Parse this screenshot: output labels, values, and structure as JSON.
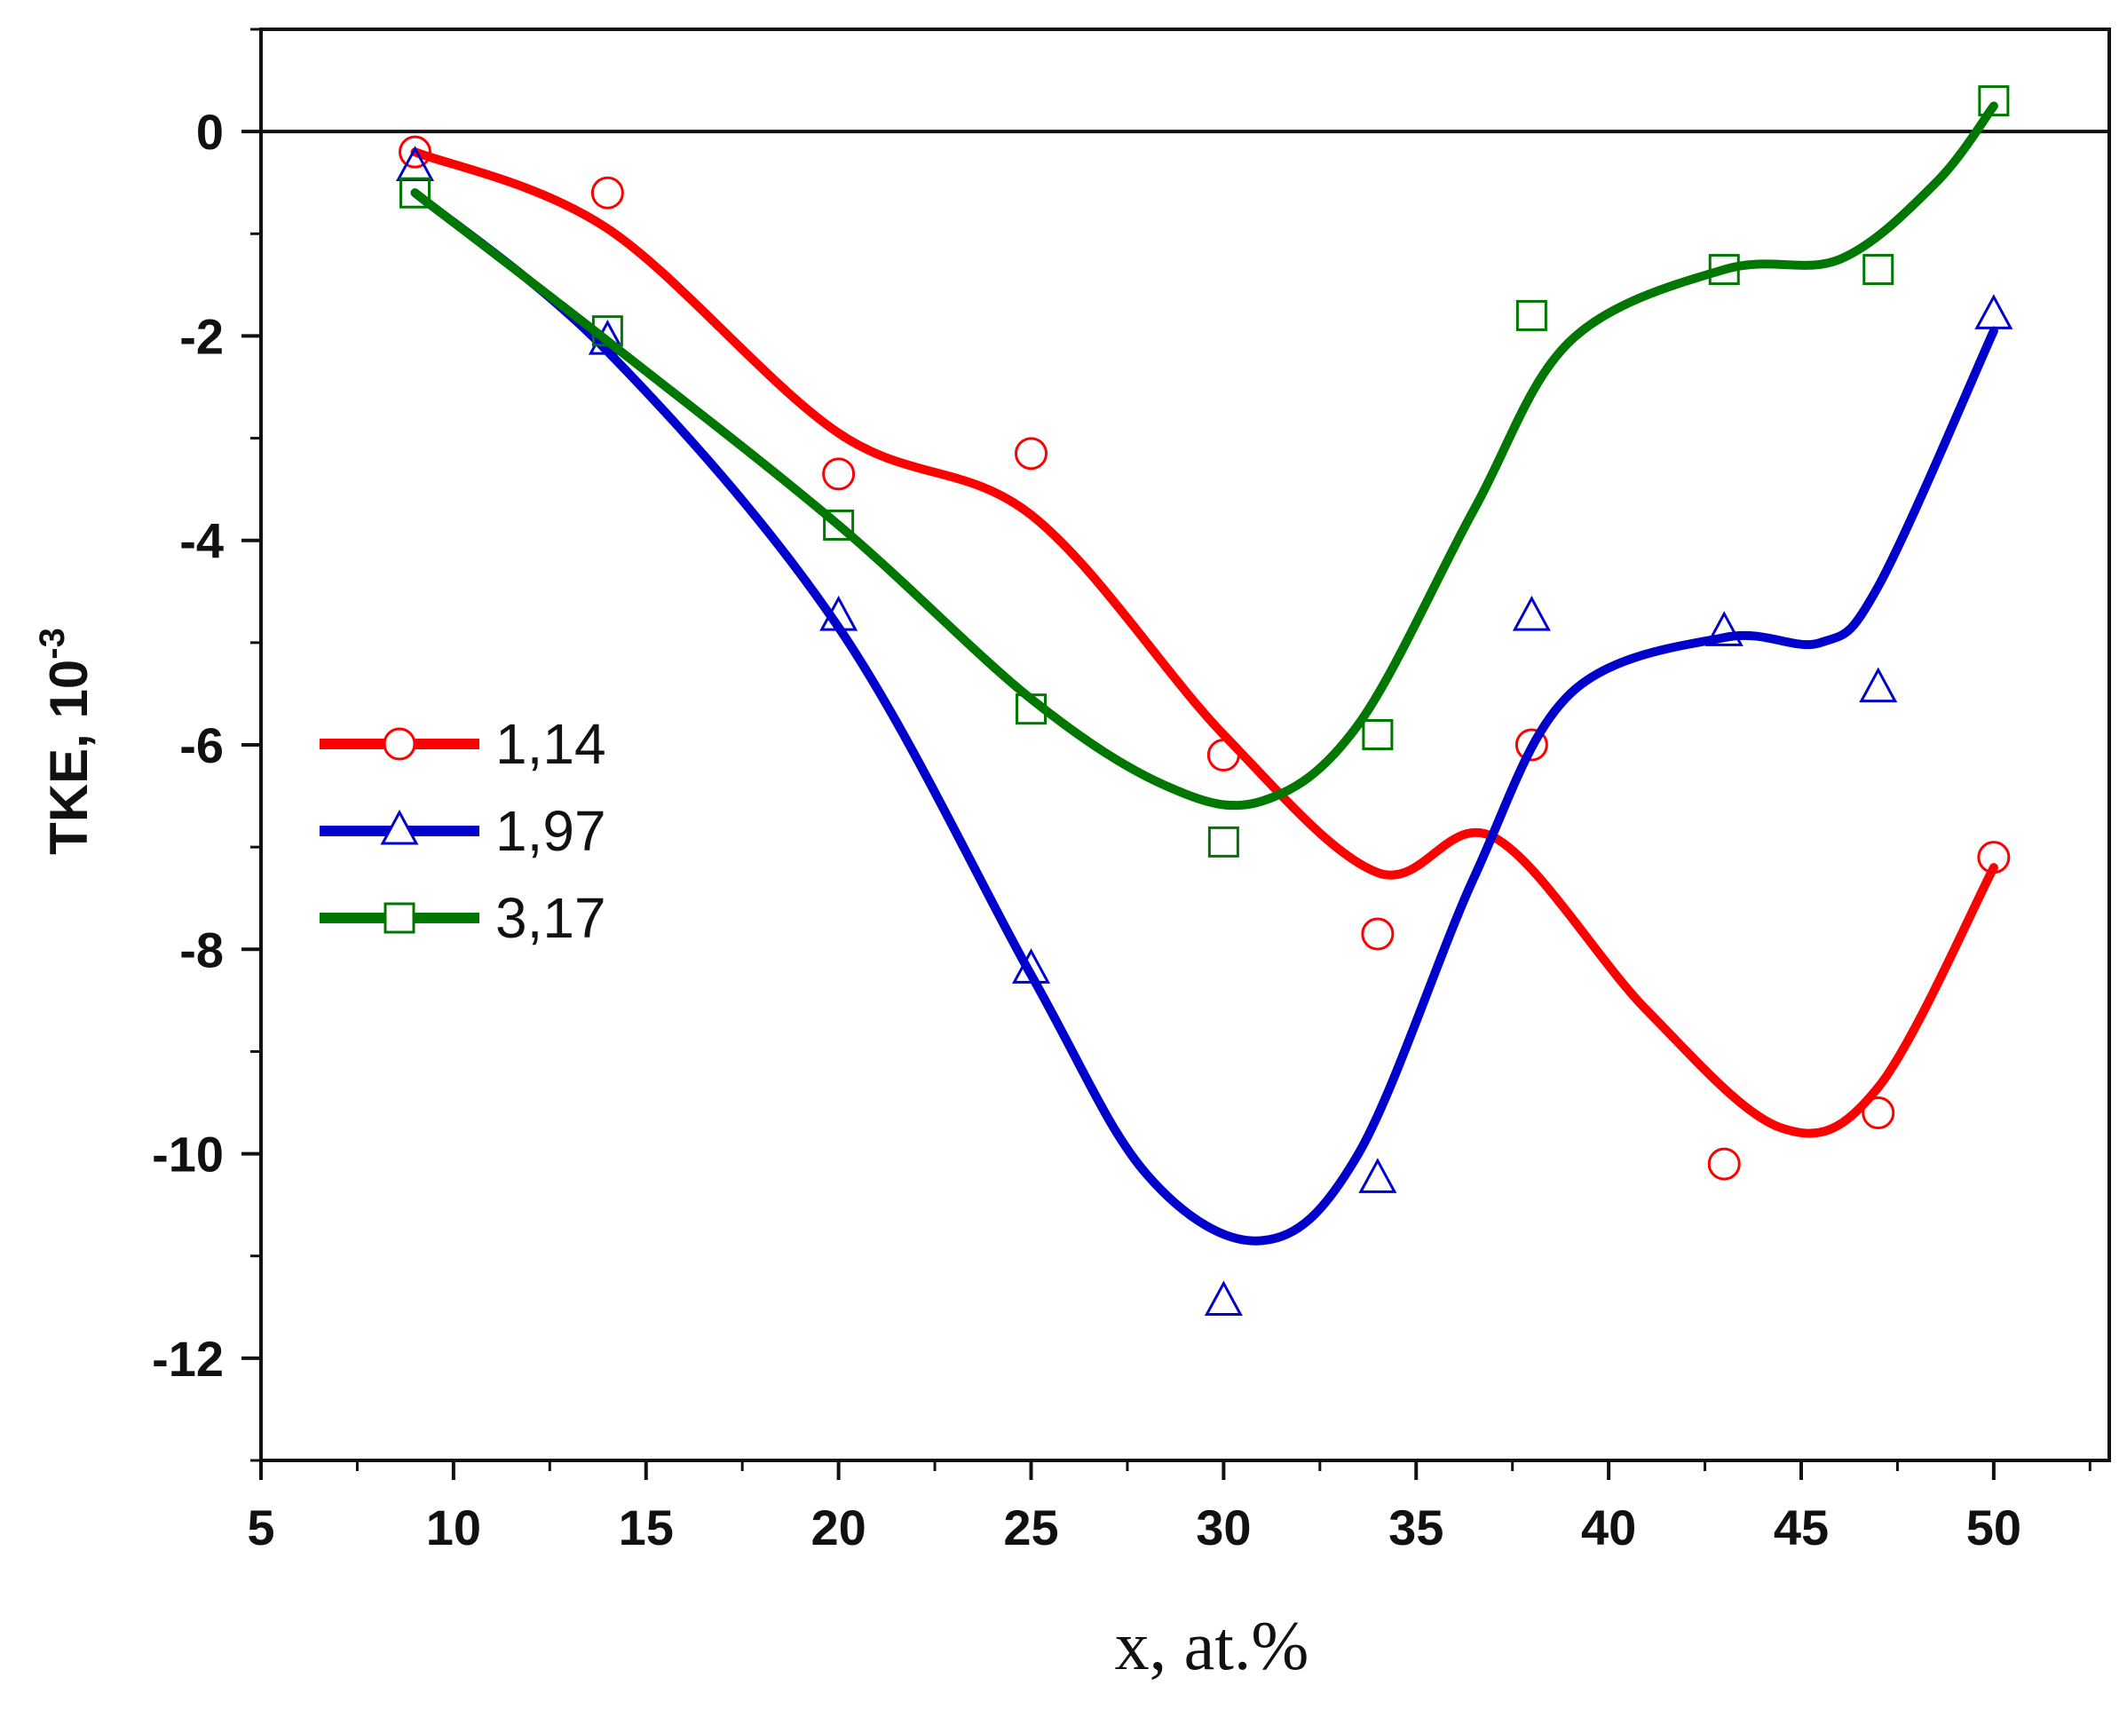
{
  "chart_data": {
    "type": "line",
    "xlabel": "x, at.%",
    "ylabel": "TKE, 10",
    "ylabel_superscript": "-3",
    "xlim": [
      5,
      53
    ],
    "ylim": [
      -13,
      1
    ],
    "xticks": [
      5,
      10,
      15,
      20,
      25,
      30,
      35,
      40,
      45,
      50
    ],
    "yticks": [
      0,
      -2,
      -4,
      -6,
      -8,
      -10,
      -12
    ],
    "zero_line": true,
    "legend_position": "left",
    "series": [
      {
        "name": "1,14",
        "color": "#ff0000",
        "marker": "circle",
        "points": [
          [
            9,
            -0.2
          ],
          [
            14,
            -0.6
          ],
          [
            20,
            -3.35
          ],
          [
            25,
            -3.15
          ],
          [
            30,
            -6.1
          ],
          [
            34,
            -7.85
          ],
          [
            38,
            -6.0
          ],
          [
            43,
            -10.1
          ],
          [
            47,
            -9.6
          ],
          [
            50,
            -7.1
          ]
        ],
        "curve": [
          [
            9,
            -0.2
          ],
          [
            14,
            -0.95
          ],
          [
            20,
            -2.95
          ],
          [
            25,
            -3.75
          ],
          [
            30,
            -5.9
          ],
          [
            34,
            -7.25
          ],
          [
            37,
            -6.9
          ],
          [
            41,
            -8.6
          ],
          [
            44.5,
            -9.75
          ],
          [
            47,
            -9.35
          ],
          [
            50,
            -7.2
          ]
        ]
      },
      {
        "name": "1,97",
        "color": "#0000cc",
        "marker": "triangle",
        "points": [
          [
            9,
            -0.35
          ],
          [
            14,
            -2.05
          ],
          [
            20,
            -4.75
          ],
          [
            25,
            -8.2
          ],
          [
            30,
            -11.45
          ],
          [
            34,
            -10.25
          ],
          [
            38,
            -4.75
          ],
          [
            43,
            -4.9
          ],
          [
            47,
            -5.45
          ],
          [
            50,
            -1.8
          ]
        ],
        "curve": [
          [
            9,
            -0.6
          ],
          [
            14,
            -2.15
          ],
          [
            20,
            -4.85
          ],
          [
            25,
            -8.25
          ],
          [
            28,
            -10.2
          ],
          [
            31,
            -10.85
          ],
          [
            33.5,
            -10.0
          ],
          [
            36.5,
            -7.3
          ],
          [
            39,
            -5.5
          ],
          [
            43,
            -4.95
          ],
          [
            45.5,
            -5.0
          ],
          [
            47,
            -4.45
          ],
          [
            50,
            -1.95
          ]
        ]
      },
      {
        "name": "3,17",
        "color": "#007700",
        "marker": "square",
        "points": [
          [
            9,
            -0.6
          ],
          [
            14,
            -1.95
          ],
          [
            20,
            -3.85
          ],
          [
            25,
            -5.65
          ],
          [
            30,
            -6.95
          ],
          [
            34,
            -5.9
          ],
          [
            38,
            -1.8
          ],
          [
            43,
            -1.35
          ],
          [
            47,
            -1.35
          ],
          [
            50,
            0.3
          ]
        ],
        "curve": [
          [
            9,
            -0.6
          ],
          [
            14,
            -2.05
          ],
          [
            20,
            -3.85
          ],
          [
            25,
            -5.55
          ],
          [
            28.5,
            -6.4
          ],
          [
            31,
            -6.55
          ],
          [
            33.5,
            -5.8
          ],
          [
            36.5,
            -3.7
          ],
          [
            39,
            -2.05
          ],
          [
            43,
            -1.35
          ],
          [
            46,
            -1.25
          ],
          [
            48.5,
            -0.5
          ],
          [
            50,
            0.25
          ]
        ]
      }
    ]
  }
}
